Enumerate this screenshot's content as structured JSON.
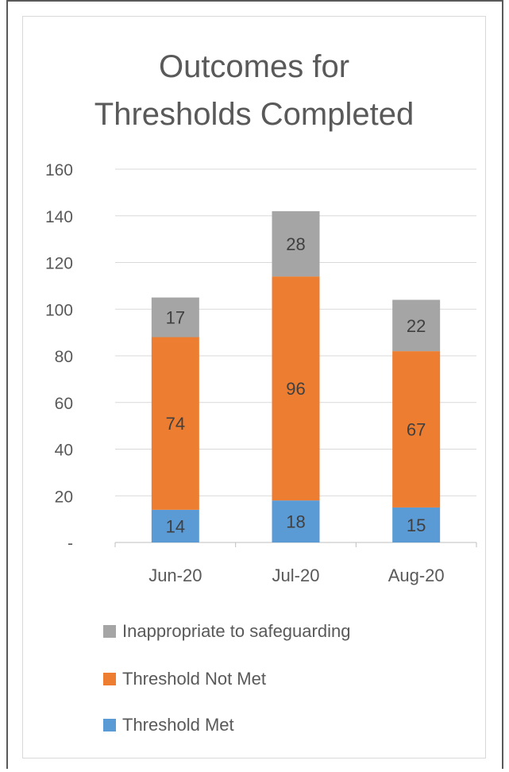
{
  "chart_data": {
    "type": "bar",
    "stacked": true,
    "title_lines": [
      "Outcomes for",
      "Thresholds Completed"
    ],
    "categories": [
      "Jun-20",
      "Jul-20",
      "Aug-20"
    ],
    "series": [
      {
        "name": "Threshold Met",
        "values": [
          14,
          18,
          15
        ],
        "color": "#5b9bd5"
      },
      {
        "name": "Threshold Not Met",
        "values": [
          74,
          96,
          67
        ],
        "color": "#ed7d31"
      },
      {
        "name": "Inappropriate to safeguarding",
        "values": [
          17,
          28,
          22
        ],
        "color": "#a5a5a5"
      }
    ],
    "y_ticks": [
      "-",
      "20",
      "40",
      "60",
      "80",
      "100",
      "120",
      "140",
      "160"
    ],
    "ylim": [
      0,
      160
    ],
    "grid": true,
    "legend_position": "bottom"
  }
}
